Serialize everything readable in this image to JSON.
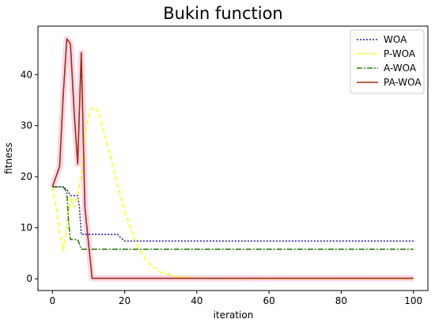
{
  "chart_data": {
    "type": "line",
    "title": "Bukin function",
    "xlabel": "iteration",
    "ylabel": "fitness",
    "xlim": [
      -4,
      104
    ],
    "ylim": [
      -2.3,
      49.5
    ],
    "xticks": [
      0,
      20,
      40,
      60,
      80,
      100
    ],
    "yticks": [
      0,
      10,
      20,
      30,
      40
    ],
    "grid": false,
    "legend_position": "top-right",
    "series": [
      {
        "name": "WOA",
        "color": "#1f1fbf",
        "dash": "dotted",
        "x": [
          0,
          3,
          4,
          5,
          6,
          7,
          7.5,
          8,
          18,
          19,
          20,
          100
        ],
        "y": [
          18,
          18,
          17.5,
          16.3,
          16.3,
          16.3,
          14,
          8.7,
          8.7,
          8.0,
          7.4,
          7.4
        ]
      },
      {
        "name": "P-WOA",
        "color": "#ffff1a",
        "dash": "dashed",
        "x": [
          0,
          1,
          2,
          3,
          4,
          5,
          6,
          7,
          8,
          9,
          10,
          11,
          12,
          13,
          14,
          16,
          18,
          20,
          22,
          24,
          26,
          28,
          30,
          34,
          38,
          42,
          50,
          60,
          80,
          100
        ],
        "y": [
          18,
          14,
          9,
          5.5,
          10,
          16,
          14,
          16,
          21,
          28,
          32,
          33.5,
          33.5,
          32,
          29.5,
          24,
          18.5,
          13.5,
          9.2,
          5.8,
          3.6,
          2.2,
          1.3,
          0.5,
          0.2,
          0.1,
          0.05,
          0.02,
          0.02,
          0.02
        ]
      },
      {
        "name": "A-WOA",
        "color": "#2e7d0e",
        "dash": "dashdot",
        "x": [
          0,
          3,
          4,
          4.5,
          5,
          7,
          8,
          100
        ],
        "y": [
          18,
          18,
          17,
          11,
          7.7,
          7.7,
          5.8,
          5.8
        ]
      },
      {
        "name": "PA-WOA",
        "color": "#a52a0f",
        "dash": "solid",
        "x": [
          0,
          2,
          3,
          4,
          5,
          6,
          7,
          8,
          9,
          10,
          11,
          100
        ],
        "y": [
          18,
          22,
          36,
          47,
          46,
          33,
          22.5,
          44.3,
          14,
          7,
          0.1,
          0.1
        ]
      }
    ]
  }
}
